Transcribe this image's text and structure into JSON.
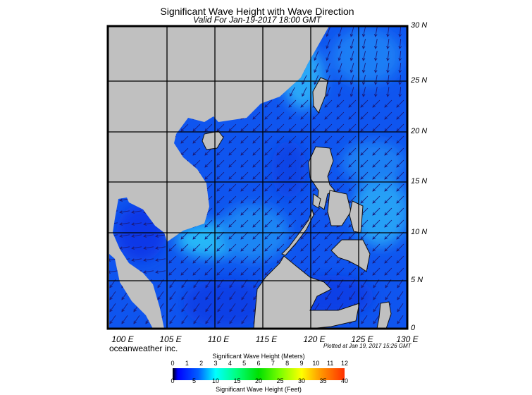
{
  "title": "Significant Wave Height with Wave Direction",
  "subtitle": "Valid For Jan-19-2017 18:00 GMT",
  "map": {
    "land_color": "#c0c0c0",
    "sea_base_color": "#0f55ef",
    "arrow_color": "#1a1a7a",
    "lat_labels": [
      "30 N",
      "25 N",
      "20 N",
      "15 N",
      "10 N",
      "5 N",
      "0"
    ],
    "lon_labels": [
      "100 E",
      "105 E",
      "110 E",
      "115 E",
      "120 E",
      "125 E",
      "130 E"
    ],
    "extent": {
      "lon": [
        99,
        130
      ],
      "lat": [
        0,
        30
      ]
    }
  },
  "footer": {
    "brand": "oceanweather inc.",
    "plotted": "Plotted at Jan 19, 2017 15:26 GMT"
  },
  "colorbar": {
    "meters_label": "Significant Wave Height (Meters)",
    "feet_label": "Significant Wave Height (Feet)",
    "meters_ticks": [
      "0",
      "1",
      "2",
      "3",
      "4",
      "5",
      "6",
      "7",
      "8",
      "9",
      "10",
      "11",
      "12"
    ],
    "feet_ticks": [
      "0",
      "5",
      "10",
      "15",
      "20",
      "25",
      "30",
      "35",
      "40"
    ]
  }
}
